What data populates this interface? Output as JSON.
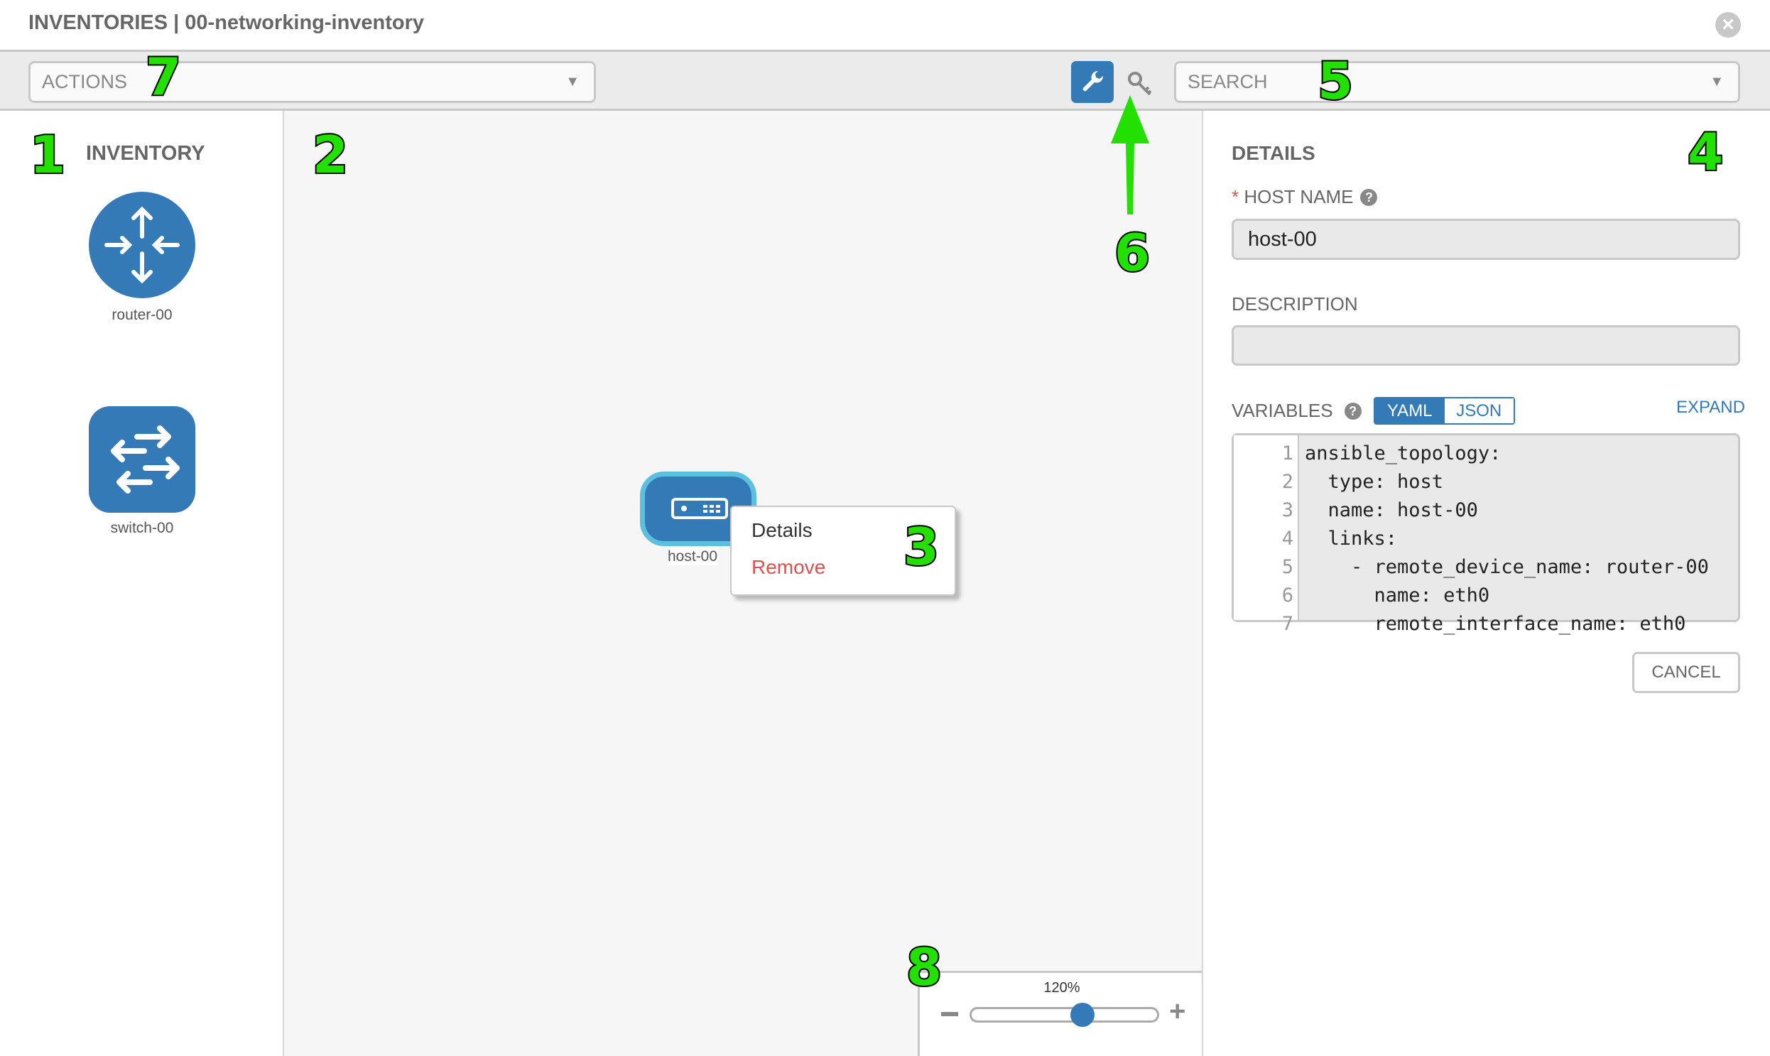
{
  "header": {
    "title": "INVENTORIES | 00-networking-inventory",
    "close_icon": "close-circle-icon"
  },
  "toolbar": {
    "actions_placeholder": "ACTIONS",
    "search_placeholder": "SEARCH",
    "wrench_icon": "wrench-icon",
    "key_icon": "key-icon"
  },
  "inventory": {
    "heading": "INVENTORY",
    "items": [
      {
        "label": "router-00",
        "icon": "router-icon"
      },
      {
        "label": "switch-00",
        "icon": "switch-icon"
      }
    ]
  },
  "canvas": {
    "host": {
      "label": "host-00",
      "icon": "server-icon"
    },
    "context_menu": {
      "details": "Details",
      "remove": "Remove"
    },
    "zoom": {
      "level": "120%"
    }
  },
  "details": {
    "heading": "DETAILS",
    "required_mark": "*",
    "host_name_label": "HOST NAME",
    "host_name_value": "host-00",
    "description_label": "DESCRIPTION",
    "description_value": "",
    "variables_label": "VARIABLES",
    "yaml": "YAML",
    "json": "JSON",
    "expand": "EXPAND",
    "code": [
      "ansible_topology:",
      "  type: host",
      "  name: host-00",
      "  links:",
      "    - remote_device_name: router-00",
      "      name: eth0",
      "      remote_interface_name: eth0"
    ],
    "line_numbers": [
      "1",
      "2",
      "3",
      "4",
      "5",
      "6",
      "7"
    ],
    "cancel": "CANCEL"
  },
  "annotations": [
    "1",
    "2",
    "3",
    "4",
    "5",
    "6",
    "7",
    "8"
  ],
  "colors": {
    "accent": "#337ab7",
    "highlight": "#5bc0de",
    "danger": "#d9534f",
    "annotation": "#22e000"
  }
}
